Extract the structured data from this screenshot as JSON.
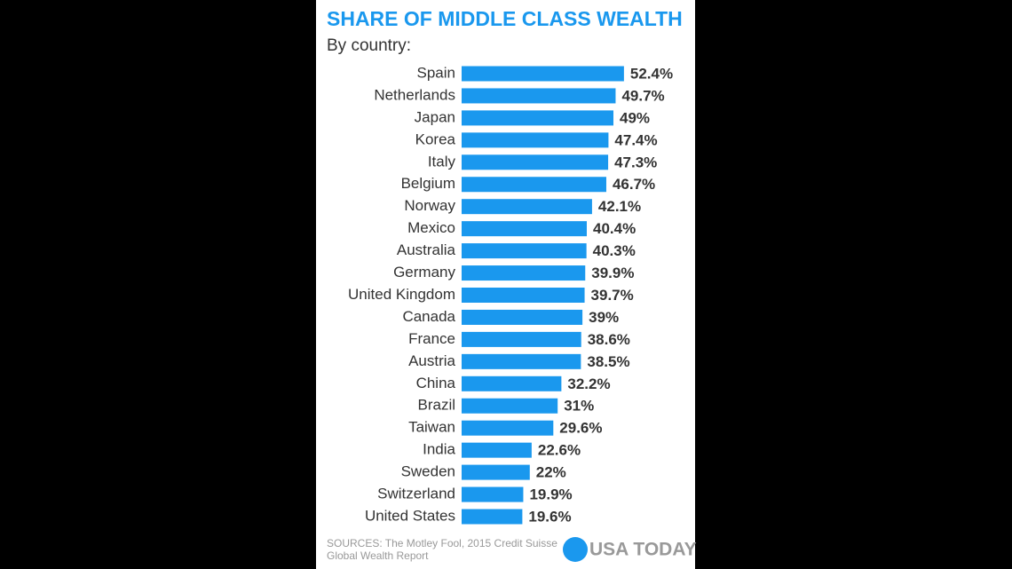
{
  "chart_data": {
    "type": "hbar",
    "title": "SHARE OF MIDDLE CLASS WEALTH",
    "subtitle": "By country:",
    "categories": [
      "Spain",
      "Netherlands",
      "Japan",
      "Korea",
      "Italy",
      "Belgium",
      "Norway",
      "Mexico",
      "Australia",
      "Germany",
      "United Kingdom",
      "Canada",
      "France",
      "Austria",
      "China",
      "Brazil",
      "Taiwan",
      "India",
      "Sweden",
      "Switzerland",
      "United States"
    ],
    "values": [
      52.4,
      49.7,
      49,
      47.4,
      47.3,
      46.7,
      42.1,
      40.4,
      40.3,
      39.9,
      39.7,
      39,
      38.6,
      38.5,
      32.2,
      31,
      29.6,
      22.6,
      22,
      19.9,
      19.6
    ],
    "value_labels": [
      "52.4%",
      "49.7%",
      "49%",
      "47.4%",
      "47.3%",
      "46.7%",
      "42.1%",
      "40.4%",
      "40.3%",
      "39.9%",
      "39.7%",
      "39%",
      "38.6%",
      "38.5%",
      "32.2%",
      "31%",
      "29.6%",
      "22.6%",
      "22%",
      "19.9%",
      "19.6%"
    ],
    "color": "#1a98ee",
    "source": [
      "SOURCES:  The Motley Fool, 2015 Credit Suisse",
      "Global Wealth Report"
    ],
    "logo": "USA TODAY"
  }
}
